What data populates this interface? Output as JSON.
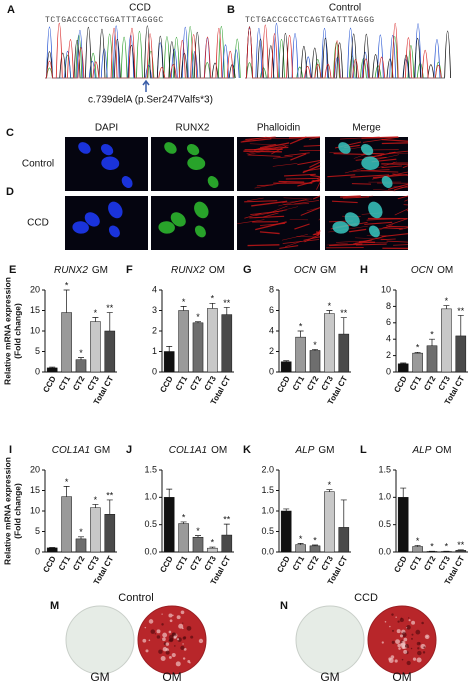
{
  "sequencing": {
    "panels": [
      {
        "label": "A",
        "title": "CCD",
        "sequence": "TCTGACCGCCTGGATTTAGGGC"
      },
      {
        "label": "B",
        "title": "Control",
        "sequence": "TCTGACCGCCTCAGTGATTTAGGG"
      }
    ],
    "annotation": "c.739delA (p.Ser247Valfs*3)"
  },
  "microscopy": {
    "panels": [
      {
        "label": "C",
        "row": "Control"
      },
      {
        "label": "D",
        "row": "CCD"
      }
    ],
    "columns": [
      "DAPI",
      "RUNX2",
      "Phalloidin",
      "Merge"
    ]
  },
  "staining": {
    "panels": [
      {
        "label": "M",
        "title": "Control"
      },
      {
        "label": "N",
        "title": "CCD"
      }
    ],
    "conditions": [
      "GM",
      "OM"
    ]
  },
  "chart_data": [
    {
      "type": "bar",
      "panel": "E",
      "title": {
        "gene": "RUNX2",
        "medium": "GM"
      },
      "ylabel": [
        "Relative mRNA expression",
        "(Fold change)"
      ],
      "categories": [
        "CCD",
        "CT1",
        "CT2",
        "CT3",
        "Total CT"
      ],
      "values": [
        1,
        14.5,
        3,
        12.3,
        10
      ],
      "errors": [
        0.2,
        5.5,
        0.5,
        1,
        4.5
      ],
      "colors": [
        "#111111",
        "#9a9a9a",
        "#6e6e6e",
        "#c8c8c8",
        "#4a4a4a"
      ],
      "significance": [
        null,
        "*",
        "*",
        "*",
        "**"
      ],
      "ylim": [
        0,
        20
      ],
      "yticks": [
        0,
        5,
        10,
        15,
        20
      ]
    },
    {
      "type": "bar",
      "panel": "F",
      "title": {
        "gene": "RUNX2",
        "medium": "OM"
      },
      "categories": [
        "CCD",
        "CT1",
        "CT2",
        "CT3",
        "Total CT"
      ],
      "values": [
        1,
        3,
        2.4,
        3.1,
        2.8
      ],
      "errors": [
        0.25,
        0.2,
        0.05,
        0.25,
        0.35
      ],
      "colors": [
        "#111111",
        "#9a9a9a",
        "#6e6e6e",
        "#c8c8c8",
        "#4a4a4a"
      ],
      "significance": [
        null,
        "*",
        "*",
        "*",
        "**"
      ],
      "ylim": [
        0,
        4
      ],
      "yticks": [
        0,
        1,
        2,
        3,
        4
      ]
    },
    {
      "type": "bar",
      "panel": "G",
      "title": {
        "gene": "OCN",
        "medium": "GM"
      },
      "categories": [
        "CCD",
        "CT1",
        "CT2",
        "CT3",
        "Total CT"
      ],
      "values": [
        1,
        3.4,
        2.1,
        5.7,
        3.7
      ],
      "errors": [
        0.1,
        0.6,
        0.1,
        0.3,
        1.6
      ],
      "colors": [
        "#111111",
        "#9a9a9a",
        "#6e6e6e",
        "#c8c8c8",
        "#4a4a4a"
      ],
      "significance": [
        null,
        "*",
        "*",
        "*",
        "**"
      ],
      "ylim": [
        0,
        8
      ],
      "yticks": [
        0,
        2,
        4,
        6,
        8
      ]
    },
    {
      "type": "bar",
      "panel": "H",
      "title": {
        "gene": "OCN",
        "medium": "OM"
      },
      "categories": [
        "CCD",
        "CT1",
        "CT2",
        "CT3",
        "Total CT"
      ],
      "values": [
        1,
        2.3,
        3.2,
        7.7,
        4.4
      ],
      "errors": [
        0.1,
        0.1,
        0.8,
        0.4,
        2.5
      ],
      "colors": [
        "#111111",
        "#9a9a9a",
        "#6e6e6e",
        "#c8c8c8",
        "#4a4a4a"
      ],
      "significance": [
        null,
        "*",
        "*",
        "*",
        "**"
      ],
      "ylim": [
        0,
        10
      ],
      "yticks": [
        0,
        2,
        4,
        6,
        8,
        10
      ]
    },
    {
      "type": "bar",
      "panel": "I",
      "title": {
        "gene": "COL1A1",
        "medium": "GM"
      },
      "ylabel": [
        "Relative mRNA expression",
        "(Fold change)"
      ],
      "categories": [
        "CCD",
        "CT1",
        "CT2",
        "CT3",
        "Total CT"
      ],
      "values": [
        1,
        13.5,
        3.2,
        10.8,
        9.2
      ],
      "errors": [
        0.1,
        2.5,
        0.5,
        0.8,
        3.5
      ],
      "colors": [
        "#111111",
        "#9a9a9a",
        "#6e6e6e",
        "#c8c8c8",
        "#4a4a4a"
      ],
      "significance": [
        null,
        "*",
        "*",
        "*",
        "**"
      ],
      "ylim": [
        0,
        20
      ],
      "yticks": [
        0,
        5,
        10,
        15,
        20
      ]
    },
    {
      "type": "bar",
      "panel": "J",
      "title": {
        "gene": "COL1A1",
        "medium": "OM"
      },
      "categories": [
        "CCD",
        "CT1",
        "CT2",
        "CT3",
        "Total CT"
      ],
      "values": [
        1,
        0.52,
        0.27,
        0.07,
        0.31
      ],
      "errors": [
        0.15,
        0.03,
        0.03,
        0.02,
        0.2
      ],
      "colors": [
        "#111111",
        "#9a9a9a",
        "#6e6e6e",
        "#c8c8c8",
        "#4a4a4a"
      ],
      "significance": [
        null,
        "*",
        "*",
        "*",
        "**"
      ],
      "ylim": [
        0,
        1.5
      ],
      "yticks": [
        {
          "value": 0,
          "label": "0.0"
        },
        0.5,
        {
          "value": 1,
          "label": "1.0"
        },
        1.5
      ]
    },
    {
      "type": "bar",
      "panel": "K",
      "title": {
        "gene": "ALP",
        "medium": "GM"
      },
      "categories": [
        "CCD",
        "CT1",
        "CT2",
        "CT3",
        "Total CT"
      ],
      "values": [
        1,
        0.18,
        0.15,
        1.47,
        0.6
      ],
      "errors": [
        0.05,
        0.03,
        0.02,
        0.05,
        0.67
      ],
      "colors": [
        "#111111",
        "#9a9a9a",
        "#6e6e6e",
        "#c8c8c8",
        "#4a4a4a"
      ],
      "significance": [
        null,
        "*",
        "*",
        "*",
        null
      ],
      "ylim": [
        0,
        2
      ],
      "yticks": [
        {
          "value": 0,
          "label": "0.0"
        },
        0.5,
        {
          "value": 1,
          "label": "1.0"
        },
        1.5,
        {
          "value": 2,
          "label": "2.0"
        }
      ]
    },
    {
      "type": "bar",
      "panel": "L",
      "title": {
        "gene": "ALP",
        "medium": "OM"
      },
      "categories": [
        "CCD",
        "CT1",
        "CT2",
        "CT3",
        "Total CT"
      ],
      "values": [
        1,
        0.1,
        0.01,
        0.01,
        0.03
      ],
      "errors": [
        0.17,
        0.02,
        0.005,
        0.005,
        0.01
      ],
      "colors": [
        "#111111",
        "#9a9a9a",
        "#6e6e6e",
        "#c8c8c8",
        "#4a4a4a"
      ],
      "significance": [
        null,
        "*",
        "*",
        "*",
        "**"
      ],
      "ylim": [
        0,
        1.5
      ],
      "yticks": [
        {
          "value": 0,
          "label": "0.0"
        },
        0.5,
        {
          "value": 1,
          "label": "1.0"
        },
        1.5
      ]
    }
  ]
}
